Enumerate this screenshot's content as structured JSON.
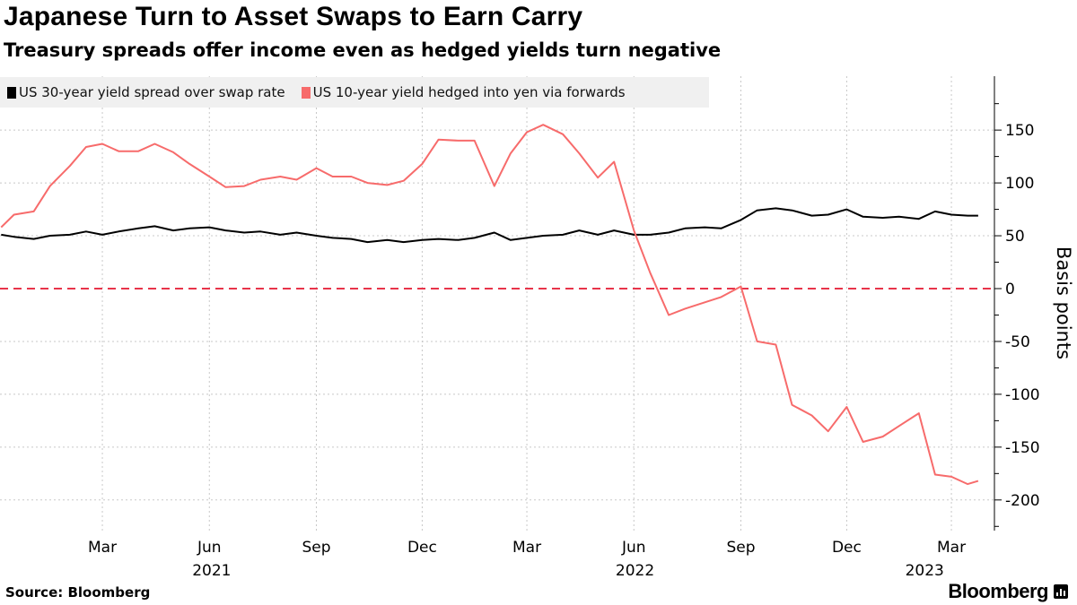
{
  "title": "Japanese Turn to Asset Swaps to Earn Carry",
  "subtitle": "Treasury spreads offer income even as hedged yields turn negative",
  "source": "Source: Bloomberg",
  "logo": "Bloomberg",
  "colors": {
    "series1": "#000000",
    "series2": "#f76b6b",
    "zero_line": "#e8344a",
    "legend_bg": "#f0f0f0"
  },
  "chart_data": {
    "type": "line",
    "ylabel": "Basis points",
    "xlim": [
      "2020-12-03",
      "2023-04-07"
    ],
    "ylim": [
      -229,
      201
    ],
    "yticks": [
      150,
      100,
      50,
      0,
      -50,
      -100,
      -150,
      -200
    ],
    "xticks": [
      {
        "date": "2021-03-01",
        "label": "Mar"
      },
      {
        "date": "2021-06-01",
        "label": "Jun"
      },
      {
        "date": "2021-09-01",
        "label": "Sep"
      },
      {
        "date": "2021-12-01",
        "label": "Dec"
      },
      {
        "date": "2022-03-01",
        "label": "Mar"
      },
      {
        "date": "2022-06-01",
        "label": "Jun"
      },
      {
        "date": "2022-09-01",
        "label": "Sep"
      },
      {
        "date": "2022-12-01",
        "label": "Dec"
      },
      {
        "date": "2023-03-01",
        "label": "Mar"
      }
    ],
    "year_labels": [
      "2021",
      "2022",
      "2023"
    ],
    "grid": true,
    "reference_line": {
      "y": 0,
      "style": "dashed"
    },
    "legend_position": "top-left",
    "x": [
      "2020-12-04",
      "2020-12-15",
      "2021-01-01",
      "2021-01-15",
      "2021-02-01",
      "2021-02-15",
      "2021-03-01",
      "2021-03-15",
      "2021-04-01",
      "2021-04-15",
      "2021-05-01",
      "2021-05-15",
      "2021-06-01",
      "2021-06-15",
      "2021-07-01",
      "2021-07-15",
      "2021-08-01",
      "2021-08-15",
      "2021-09-01",
      "2021-09-15",
      "2021-10-01",
      "2021-10-15",
      "2021-11-01",
      "2021-11-15",
      "2021-12-01",
      "2021-12-15",
      "2022-01-01",
      "2022-01-15",
      "2022-02-01",
      "2022-02-15",
      "2022-03-01",
      "2022-03-15",
      "2022-04-01",
      "2022-04-15",
      "2022-05-01",
      "2022-05-15",
      "2022-06-01",
      "2022-06-15",
      "2022-07-01",
      "2022-07-15",
      "2022-08-01",
      "2022-08-15",
      "2022-09-01",
      "2022-09-15",
      "2022-10-01",
      "2022-10-15",
      "2022-11-01",
      "2022-11-15",
      "2022-12-01",
      "2022-12-15",
      "2023-01-01",
      "2023-01-15",
      "2023-02-01",
      "2023-02-15",
      "2023-03-01",
      "2023-03-15",
      "2023-03-24"
    ],
    "series": [
      {
        "name": "US 30-year yield spread over swap rate",
        "values": [
          51,
          49,
          47,
          50,
          51,
          54,
          51,
          54,
          57,
          59,
          55,
          57,
          58,
          55,
          53,
          54,
          51,
          53,
          50,
          48,
          47,
          44,
          46,
          44,
          46,
          47,
          46,
          48,
          53,
          46,
          48,
          50,
          51,
          55,
          51,
          55,
          51,
          51,
          53,
          57,
          58,
          57,
          65,
          74,
          76,
          74,
          69,
          70,
          75,
          68,
          67,
          68,
          66,
          73,
          70,
          69,
          69
        ]
      },
      {
        "name": "US 10-year yield hedged into yen via forwards",
        "values": [
          58,
          70,
          73,
          97,
          116,
          134,
          137,
          130,
          130,
          137,
          129,
          118,
          106,
          96,
          97,
          103,
          106,
          103,
          114,
          106,
          106,
          100,
          98,
          102,
          118,
          141,
          140,
          140,
          97,
          128,
          148,
          155,
          146,
          128,
          105,
          120,
          55,
          15,
          -25,
          -19,
          -13,
          -8,
          2,
          -50,
          -53,
          -110,
          -120,
          -135,
          -112,
          -145,
          -140,
          -130,
          -118,
          -176,
          -178,
          -185,
          -182
        ]
      }
    ]
  }
}
